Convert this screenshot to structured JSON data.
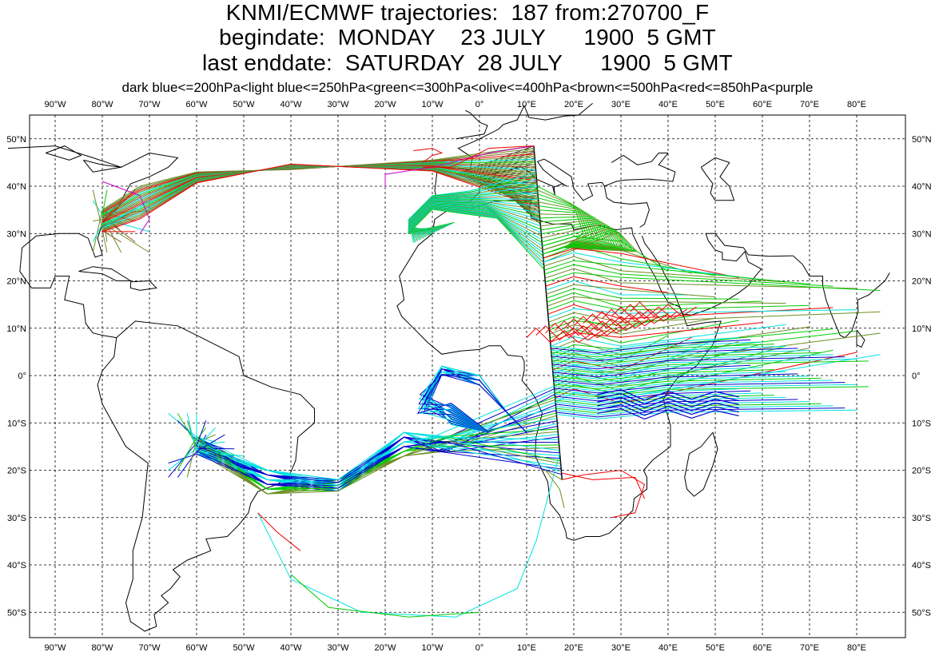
{
  "header": {
    "line1": "KNMI/ECMWF trajectories:  187 from:270700_F",
    "line2": "begindate:  MONDAY    23 JULY      1900  5 GMT",
    "line3": "last enddate:  SATURDAY  28 JULY      1900  5 GMT",
    "legend": "dark blue<=200hPa<light blue<=250hPa<green<=300hPa<olive<=400hPa<brown<=500hPa<red<=850hPa<purple"
  },
  "map": {
    "lon_range": [
      -100,
      90
    ],
    "lat_range": [
      -55,
      55
    ],
    "lon_ticks": [
      "90°W",
      "80°W",
      "70°W",
      "60°W",
      "50°W",
      "40°W",
      "30°W",
      "20°W",
      "10°W",
      "0°",
      "10°E",
      "20°E",
      "30°E",
      "40°E",
      "50°E",
      "60°E",
      "70°E",
      "80°E"
    ],
    "lat_ticks": [
      "50°N",
      "40°N",
      "30°N",
      "20°N",
      "10°N",
      "0°",
      "10°S",
      "20°S",
      "30°S",
      "40°S",
      "50°S"
    ],
    "grid": "dashed",
    "colors": {
      "dark_blue": "#0000cc",
      "light_blue": "#00e0e0",
      "green": "#00cc00",
      "olive": "#6b8e23",
      "brown": "#8b5a2b",
      "red": "#ee0000",
      "purple": "#cc00cc",
      "coast": "#000000"
    },
    "source_line": [
      [
        11.5,
        48.5
      ],
      [
        17.5,
        -22
      ]
    ]
  }
}
